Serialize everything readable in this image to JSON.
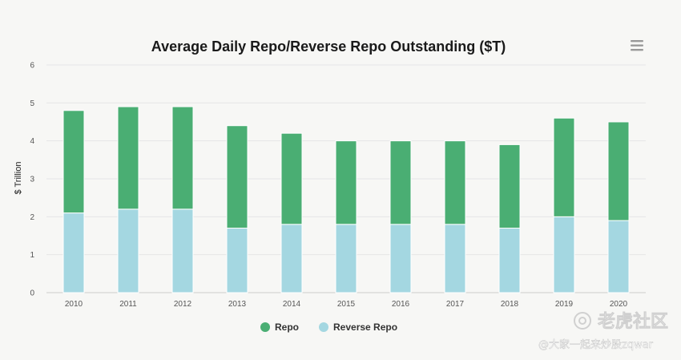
{
  "chart_data": {
    "type": "bar",
    "stacked": true,
    "title": "Average Daily Repo/Reverse Repo Outstanding ($T)",
    "xlabel": "",
    "ylabel": "$ Trillion",
    "ylim": [
      0,
      6
    ],
    "yticks": [
      0,
      1,
      2,
      3,
      4,
      5,
      6
    ],
    "grid": true,
    "legend_position": "bottom-center",
    "categories": [
      "2010",
      "2011",
      "2012",
      "2013",
      "2014",
      "2015",
      "2016",
      "2017",
      "2018",
      "2019",
      "2020"
    ],
    "series": [
      {
        "name": "Reverse Repo",
        "color": "#a4d7e1",
        "values": [
          2.1,
          2.2,
          2.2,
          1.7,
          1.8,
          1.8,
          1.8,
          1.8,
          1.7,
          2.0,
          1.9
        ]
      },
      {
        "name": "Repo",
        "color": "#4aae73",
        "values": [
          2.7,
          2.7,
          2.7,
          2.7,
          2.4,
          2.2,
          2.2,
          2.2,
          2.2,
          2.6,
          2.6
        ]
      }
    ],
    "legend_order": [
      "Repo",
      "Reverse Repo"
    ]
  },
  "menu": {
    "icon": "hamburger-menu-icon"
  },
  "watermark": {
    "main": "老虎社区",
    "sub": "@大家一起来炒股zqwar"
  },
  "colors": {
    "background": "#f7f7f5",
    "grid": "#e6e6e6",
    "menu": "#999999"
  }
}
